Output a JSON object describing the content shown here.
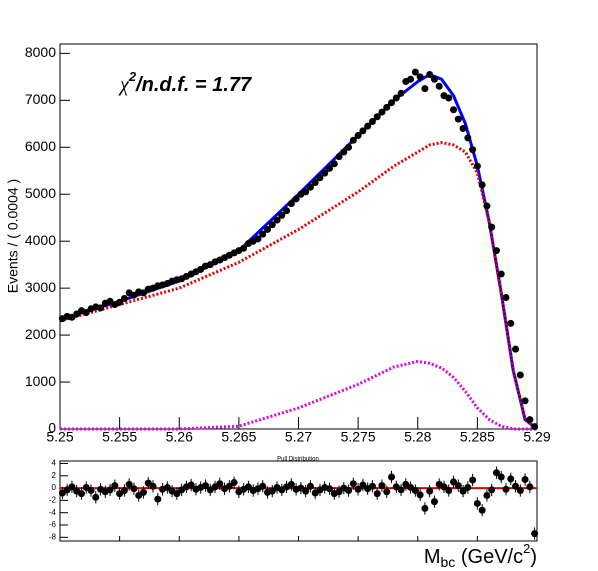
{
  "chart_data": [
    {
      "type": "scatter",
      "ylabel": "Events / ( 0.0004 )",
      "xlabel": {
        "main": "M",
        "sub": "bc",
        "mid": " (GeV/c",
        "sup": "2",
        "end": ")"
      },
      "annotation": {
        "symbol": "χ",
        "sup": "2",
        "text": "/n.d.f. =  1.77"
      },
      "xlim": [
        5.25,
        5.29
      ],
      "xticks": [
        5.25,
        5.255,
        5.26,
        5.265,
        5.27,
        5.275,
        5.28,
        5.285,
        5.29
      ],
      "ylim": [
        0,
        8200
      ],
      "yticks": [
        0,
        1000,
        2000,
        3000,
        4000,
        5000,
        6000,
        7000,
        8000
      ],
      "x": [
        5.2502,
        5.2506,
        5.251,
        5.2514,
        5.2518,
        5.2522,
        5.2526,
        5.253,
        5.2534,
        5.2538,
        5.2542,
        5.2546,
        5.255,
        5.2554,
        5.2558,
        5.2562,
        5.2566,
        5.257,
        5.2574,
        5.2578,
        5.2582,
        5.2586,
        5.259,
        5.2594,
        5.2598,
        5.2602,
        5.2606,
        5.261,
        5.2614,
        5.2618,
        5.2622,
        5.2626,
        5.263,
        5.2634,
        5.2638,
        5.2642,
        5.2646,
        5.265,
        5.2654,
        5.2658,
        5.2662,
        5.2666,
        5.267,
        5.2674,
        5.2678,
        5.2682,
        5.2686,
        5.269,
        5.2694,
        5.2698,
        5.2702,
        5.2706,
        5.271,
        5.2714,
        5.2718,
        5.2722,
        5.2726,
        5.273,
        5.2734,
        5.2738,
        5.2742,
        5.2746,
        5.275,
        5.2754,
        5.2758,
        5.2762,
        5.2766,
        5.277,
        5.2774,
        5.2778,
        5.2782,
        5.2786,
        5.279,
        5.2794,
        5.2798,
        5.2802,
        5.2806,
        5.281,
        5.2814,
        5.2818,
        5.2822,
        5.2826,
        5.283,
        5.2834,
        5.2838,
        5.2842,
        5.2846,
        5.285,
        5.2854,
        5.2858,
        5.2862,
        5.2866,
        5.287,
        5.2874,
        5.2878,
        5.2882,
        5.2886,
        5.289,
        5.2894,
        5.2898
      ],
      "values": [
        2350,
        2400,
        2380,
        2450,
        2520,
        2480,
        2560,
        2600,
        2580,
        2680,
        2720,
        2650,
        2700,
        2780,
        2900,
        2850,
        2920,
        2900,
        2980,
        3000,
        3050,
        3070,
        3100,
        3150,
        3180,
        3200,
        3250,
        3300,
        3350,
        3400,
        3470,
        3500,
        3560,
        3600,
        3650,
        3700,
        3750,
        3800,
        3850,
        3950,
        4000,
        4050,
        4150,
        4250,
        4350,
        4450,
        4550,
        4650,
        4800,
        4900,
        5000,
        5050,
        5150,
        5250,
        5350,
        5450,
        5550,
        5650,
        5800,
        5900,
        6000,
        6150,
        6250,
        6350,
        6450,
        6550,
        6650,
        6750,
        6850,
        6950,
        7050,
        7150,
        7400,
        7450,
        7600,
        7500,
        7250,
        7550,
        7450,
        7300,
        7100,
        7050,
        6800,
        6600,
        6400,
        6200,
        5950,
        5600,
        5200,
        4750,
        4300,
        3800,
        3300,
        2800,
        2250,
        1700,
        1150,
        600,
        200,
        50
      ],
      "color": "#000000",
      "curves": [
        {
          "name": "total",
          "color": "#0000ff",
          "style": "solid",
          "x": [
            5.25,
            5.255,
            5.26,
            5.265,
            5.27,
            5.275,
            5.278,
            5.28,
            5.281,
            5.282,
            5.283,
            5.284,
            5.285,
            5.286,
            5.287,
            5.288,
            5.289,
            5.29
          ],
          "values": [
            2330,
            2720,
            3150,
            3800,
            5000,
            6250,
            7000,
            7400,
            7550,
            7450,
            7100,
            6500,
            5600,
            4400,
            2900,
            1250,
            200,
            0
          ]
        },
        {
          "name": "background",
          "color": "#e00000",
          "style": "dotted",
          "x": [
            5.25,
            5.255,
            5.26,
            5.265,
            5.27,
            5.275,
            5.278,
            5.28,
            5.281,
            5.282,
            5.283,
            5.284,
            5.285,
            5.286,
            5.287,
            5.288,
            5.289,
            5.29
          ],
          "values": [
            2300,
            2650,
            3000,
            3550,
            4250,
            5050,
            5600,
            5900,
            6050,
            6100,
            6050,
            5900,
            5450,
            4400,
            2900,
            1250,
            200,
            0
          ]
        },
        {
          "name": "signal",
          "color": "#e000e0",
          "style": "dotted",
          "x": [
            5.25,
            5.255,
            5.26,
            5.265,
            5.27,
            5.275,
            5.278,
            5.28,
            5.281,
            5.282,
            5.283,
            5.284,
            5.285,
            5.286,
            5.287,
            5.288,
            5.289,
            5.29
          ],
          "values": [
            0,
            0,
            0,
            60,
            450,
            950,
            1320,
            1440,
            1400,
            1300,
            1100,
            800,
            450,
            200,
            60,
            0,
            0,
            0
          ]
        }
      ]
    },
    {
      "type": "pull",
      "title": "Pull Distribution",
      "ylim": [
        -8.6,
        4.4
      ],
      "yticks": [
        -8,
        -6,
        -4,
        -2,
        0,
        2,
        4
      ],
      "pull_error": 1,
      "reference_line": 0,
      "line_color": "#e00000",
      "values": [
        -0.8,
        -0.3,
        0.2,
        -0.5,
        -0.9,
        0.1,
        -0.4,
        -1.5,
        -0.2,
        -0.6,
        -0.3,
        0.4,
        -0.9,
        -0.4,
        0.6,
        -0.1,
        -1.2,
        -0.7,
        0.8,
        0.3,
        -1.8,
        -0.2,
        0.1,
        -0.5,
        -0.9,
        -0.3,
        0.2,
        0.5,
        -0.2,
        0.1,
        0.4,
        -0.3,
        0.2,
        0.7,
        -0.1,
        0.3,
        0.9,
        -0.6,
        -0.2,
        0.2,
        -0.4,
        -0.1,
        0.3,
        -0.7,
        -0.5,
        0.1,
        -0.3,
        0.2,
        0.6,
        -0.2,
        0.0,
        -0.5,
        0.3,
        -0.8,
        -0.3,
        0.1,
        -0.1,
        -0.9,
        -0.6,
        0.0,
        -0.4,
        0.7,
        -0.2,
        0.5,
        -0.1,
        0.3,
        -0.9,
        0.4,
        -0.6,
        1.8,
        0.2,
        -0.3,
        0.6,
        0.1,
        -0.4,
        -1.1,
        -3.3,
        -0.5,
        -2.2,
        0.6,
        0.2,
        -0.4,
        1.0,
        0.4,
        -0.5,
        0.1,
        1.3,
        -2.5,
        -3.6,
        -1.2,
        -0.3,
        2.5,
        1.8,
        -0.2,
        1.5,
        0.3,
        -0.4,
        1.4,
        0.2,
        -7.4
      ]
    }
  ]
}
